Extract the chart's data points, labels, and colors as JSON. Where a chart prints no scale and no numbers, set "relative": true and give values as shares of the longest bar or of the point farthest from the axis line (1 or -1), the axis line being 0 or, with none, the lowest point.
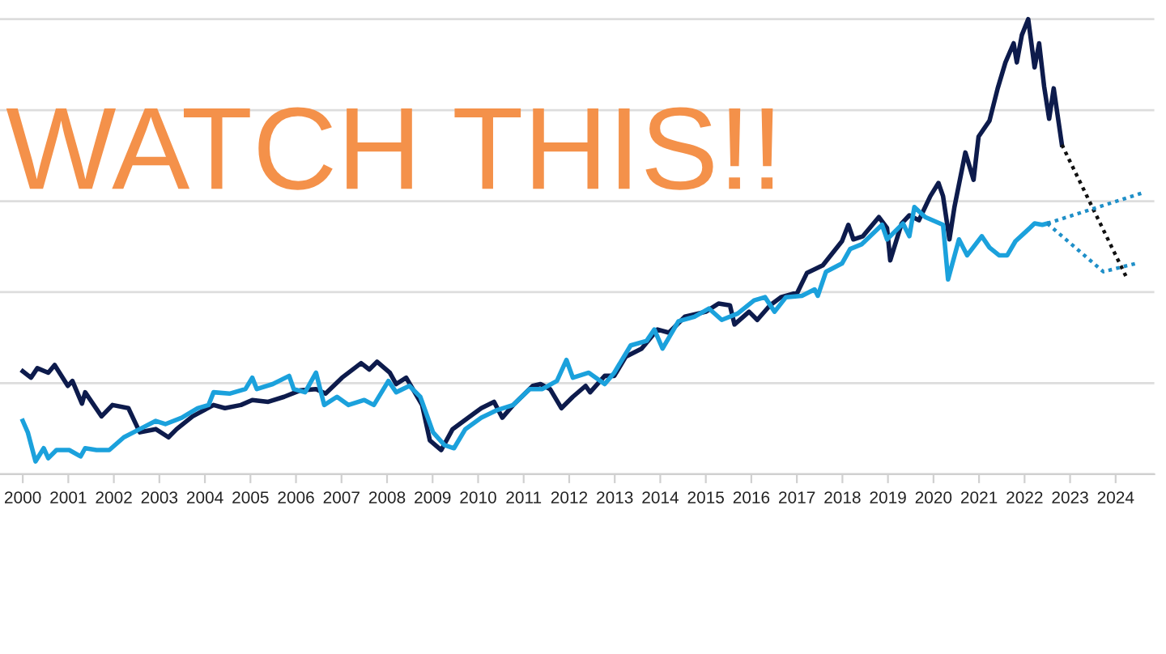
{
  "chart_data": {
    "type": "line",
    "relative": true,
    "grid": "y",
    "marker": "none",
    "xlim": [
      1999.5,
      2024.85
    ],
    "xticks": [
      2000,
      2001,
      2002,
      2003,
      2004,
      2005,
      2006,
      2007,
      2008,
      2009,
      2010,
      2011,
      2012,
      2013,
      2014,
      2015,
      2016,
      2017,
      2018,
      2019,
      2020,
      2021,
      2022,
      2023,
      2024
    ],
    "annotations": [
      "WATCH THIS!!"
    ],
    "series": [
      {
        "color": "#0d1b4c",
        "line_style": "solid",
        "x": [
          2000.0,
          2000.18,
          2000.32,
          2000.56,
          2000.7,
          2000.99,
          2001.09,
          2001.3,
          2001.37,
          2001.73,
          2001.97,
          2002.32,
          2002.57,
          2002.92,
          2003.2,
          2003.38,
          2003.73,
          2004.19,
          2004.44,
          2004.79,
          2005.04,
          2005.39,
          2005.74,
          2006.09,
          2006.44,
          2006.65,
          2007.01,
          2007.43,
          2007.61,
          2007.78,
          2008.06,
          2008.2,
          2008.42,
          2008.77,
          2008.94,
          2009.19,
          2009.44,
          2009.82,
          2010.07,
          2010.35,
          2010.53,
          2010.77,
          2011.2,
          2011.37,
          2011.58,
          2011.83,
          2012.08,
          2012.36,
          2012.46,
          2012.78,
          2012.99,
          2013.24,
          2013.59,
          2013.94,
          2014.19,
          2014.54,
          2015.0,
          2015.28,
          2015.53,
          2015.63,
          2015.95,
          2016.13,
          2016.41,
          2016.65,
          2017.01,
          2017.22,
          2017.57,
          2017.99,
          2018.13,
          2018.24,
          2018.45,
          2018.8,
          2018.98,
          2019.05,
          2019.3,
          2019.47,
          2019.68,
          2019.93,
          2020.11,
          2020.21,
          2020.35,
          2020.46,
          2020.7,
          2020.88,
          2020.99,
          2021.23,
          2021.41,
          2021.58,
          2021.76,
          2021.83,
          2021.94,
          2022.08,
          2022.22,
          2022.32,
          2022.43,
          2022.54,
          2022.64,
          2022.82
        ],
        "values": [
          0.226,
          0.212,
          0.233,
          0.223,
          0.24,
          0.194,
          0.205,
          0.155,
          0.18,
          0.127,
          0.152,
          0.145,
          0.092,
          0.099,
          0.081,
          0.099,
          0.127,
          0.152,
          0.145,
          0.152,
          0.163,
          0.159,
          0.17,
          0.184,
          0.187,
          0.177,
          0.212,
          0.244,
          0.23,
          0.247,
          0.223,
          0.198,
          0.212,
          0.152,
          0.074,
          0.053,
          0.099,
          0.127,
          0.145,
          0.159,
          0.124,
          0.152,
          0.194,
          0.198,
          0.187,
          0.145,
          0.17,
          0.194,
          0.18,
          0.216,
          0.216,
          0.258,
          0.276,
          0.318,
          0.311,
          0.346,
          0.357,
          0.375,
          0.371,
          0.329,
          0.357,
          0.339,
          0.371,
          0.389,
          0.399,
          0.442,
          0.459,
          0.512,
          0.548,
          0.516,
          0.523,
          0.565,
          0.541,
          0.47,
          0.551,
          0.569,
          0.558,
          0.611,
          0.64,
          0.611,
          0.516,
          0.587,
          0.707,
          0.647,
          0.742,
          0.777,
          0.848,
          0.905,
          0.947,
          0.905,
          0.965,
          1.0,
          0.894,
          0.947,
          0.852,
          0.781,
          0.848,
          0.724
        ]
      },
      {
        "color": "#1ba1dc",
        "line_style": "solid",
        "x": [
          2000.0,
          2000.11,
          2000.28,
          2000.46,
          2000.56,
          2000.74,
          2001.02,
          2001.27,
          2001.37,
          2001.62,
          2001.9,
          2002.22,
          2002.57,
          2002.92,
          2003.13,
          2003.49,
          2003.84,
          2004.08,
          2004.19,
          2004.54,
          2004.89,
          2005.04,
          2005.14,
          2005.49,
          2005.85,
          2005.95,
          2006.2,
          2006.44,
          2006.62,
          2006.9,
          2007.15,
          2007.5,
          2007.71,
          2008.03,
          2008.2,
          2008.49,
          2008.73,
          2009.01,
          2009.26,
          2009.47,
          2009.72,
          2010.07,
          2010.42,
          2010.77,
          2011.13,
          2011.41,
          2011.73,
          2011.94,
          2012.08,
          2012.43,
          2012.78,
          2012.99,
          2013.35,
          2013.7,
          2013.87,
          2014.05,
          2014.4,
          2014.75,
          2015.07,
          2015.35,
          2015.7,
          2016.06,
          2016.3,
          2016.51,
          2016.76,
          2017.11,
          2017.39,
          2017.46,
          2017.64,
          2017.99,
          2018.17,
          2018.42,
          2018.87,
          2018.98,
          2019.33,
          2019.47,
          2019.58,
          2019.82,
          2020.21,
          2020.32,
          2020.56,
          2020.74,
          2021.06,
          2021.23,
          2021.44,
          2021.62,
          2021.8,
          2022.04,
          2022.22,
          2022.39,
          2022.5
        ],
        "values": [
          0.117,
          0.092,
          0.028,
          0.057,
          0.035,
          0.053,
          0.053,
          0.039,
          0.057,
          0.053,
          0.053,
          0.081,
          0.099,
          0.117,
          0.11,
          0.124,
          0.145,
          0.152,
          0.18,
          0.177,
          0.187,
          0.212,
          0.187,
          0.198,
          0.216,
          0.187,
          0.18,
          0.223,
          0.152,
          0.17,
          0.152,
          0.163,
          0.152,
          0.205,
          0.18,
          0.194,
          0.17,
          0.092,
          0.064,
          0.057,
          0.099,
          0.124,
          0.141,
          0.152,
          0.187,
          0.187,
          0.205,
          0.251,
          0.212,
          0.223,
          0.198,
          0.223,
          0.283,
          0.293,
          0.318,
          0.276,
          0.336,
          0.346,
          0.364,
          0.339,
          0.353,
          0.382,
          0.389,
          0.357,
          0.389,
          0.392,
          0.406,
          0.392,
          0.445,
          0.463,
          0.495,
          0.505,
          0.548,
          0.516,
          0.551,
          0.523,
          0.587,
          0.565,
          0.548,
          0.428,
          0.516,
          0.481,
          0.523,
          0.498,
          0.481,
          0.481,
          0.512,
          0.534,
          0.551,
          0.548,
          0.551
        ]
      },
      {
        "color": "#111111",
        "line_style": "dotted",
        "x": [
          2022.82,
          2024.26
        ],
        "values": [
          0.724,
          0.428
        ]
      },
      {
        "color": "#1f8fc8",
        "line_style": "dotted",
        "x": [
          2022.5,
          2024.58
        ],
        "values": [
          0.551,
          0.618
        ]
      },
      {
        "color": "#1f8fc8",
        "line_style": "dotted",
        "x": [
          2022.5,
          2023.73,
          2024.44
        ],
        "values": [
          0.551,
          0.445,
          0.463
        ]
      }
    ]
  }
}
